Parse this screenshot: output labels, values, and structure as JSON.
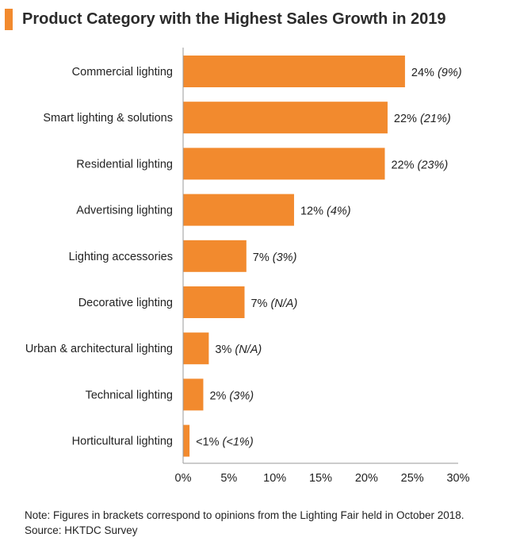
{
  "title": "Product Category with the Highest Sales Growth in 2019",
  "colors": {
    "bar": "#F28A2E",
    "axis": "#999999"
  },
  "chart_data": {
    "type": "bar",
    "orientation": "horizontal",
    "title": "Product Category with the Highest Sales Growth in 2019",
    "categories": [
      "Commercial lighting",
      "Smart lighting & solutions",
      "Residential lighting",
      "Advertising lighting",
      "Lighting accessories",
      "Decorative lighting",
      "Urban & architectural lighting",
      "Technical lighting",
      "Horticultural lighting"
    ],
    "values": [
      24.2,
      22.3,
      22.0,
      12.1,
      6.9,
      6.7,
      2.8,
      2.2,
      0.7
    ],
    "value_labels": [
      "24%",
      "22%",
      "22%",
      "12%",
      "7%",
      "7%",
      "3%",
      "2%",
      "<1%"
    ],
    "bracket_labels": [
      "(9%)",
      "(21%)",
      "(23%)",
      "(4%)",
      "(3%)",
      "(N/A)",
      "(N/A)",
      "(3%)",
      "(<1%)"
    ],
    "xlim": [
      0,
      30
    ],
    "xticks": [
      "0%",
      "5%",
      "10%",
      "15%",
      "20%",
      "25%",
      "30%"
    ],
    "grid": false
  },
  "notes": {
    "line1": "Note: Figures in brackets correspond to opinions from the Lighting Fair held in October 2018.",
    "line2": "Source: HKTDC Survey"
  }
}
